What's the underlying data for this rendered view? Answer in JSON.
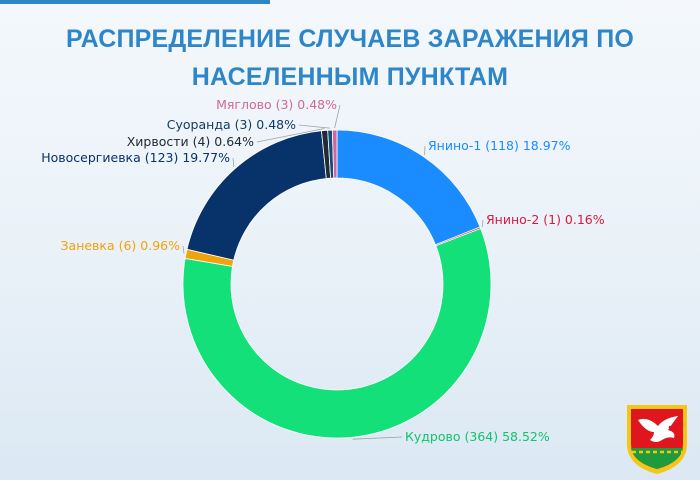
{
  "title": {
    "line1": "РАСПРЕДЕЛЕНИЕ СЛУЧАЕВ ЗАРАЖЕНИЯ ПО",
    "line2": "НАСЕЛЕННЫМ ПУНКТАМ"
  },
  "chart_data": {
    "type": "pie",
    "style": "donut",
    "title": "РАСПРЕДЕЛЕНИЕ СЛУЧАЕВ ЗАРАЖЕНИЯ ПО НАСЕЛЕННЫМ ПУНКТАМ",
    "slices": [
      {
        "name": "Янино-1",
        "value": 118,
        "percent": 18.97,
        "label": "Янино-1 (118) 18.97%",
        "color": "#1a8cff"
      },
      {
        "name": "Янино-2",
        "value": 1,
        "percent": 0.16,
        "label": "Янино-2 (1) 0.16%",
        "color": "#d81b3c"
      },
      {
        "name": "Кудрово",
        "value": 364,
        "percent": 58.52,
        "label": "Кудрово (364) 58.52%",
        "color": "#14e07a"
      },
      {
        "name": "Заневка",
        "value": 6,
        "percent": 0.96,
        "label": "Заневка (6) 0.96%",
        "color": "#f0a30a"
      },
      {
        "name": "Новосергиевка",
        "value": 123,
        "percent": 19.77,
        "label": "Новосергиевка (123) 19.77%",
        "color": "#08326a"
      },
      {
        "name": "Хирвости",
        "value": 4,
        "percent": 0.64,
        "label": "Хирвости (4) 0.64%",
        "color": "#222b33"
      },
      {
        "name": "Суоранда",
        "value": 3,
        "percent": 0.48,
        "label": "Суоранда (3) 0.48%",
        "color": "#0f4d7a"
      },
      {
        "name": "Мяглово",
        "value": 3,
        "percent": 0.48,
        "label": "Мяглово (3) 0.48%",
        "color": "#d2679a"
      }
    ],
    "label_colors": {
      "Янино-1": "#1a8cff",
      "Янино-2": "#d81b3c",
      "Кудрово": "#11c46b",
      "Заневка": "#f0a30a",
      "Новосергиевка": "#08326a",
      "Хирвости": "#222b33",
      "Суоранда": "#0f3c66",
      "Мяглово": "#d2679a"
    }
  },
  "logo": {
    "name": "coat-of-arms-icon",
    "colors": {
      "field": "#e0161e",
      "bird": "#ffffff",
      "base": "#1f9a3c",
      "border": "#f5c518"
    }
  }
}
